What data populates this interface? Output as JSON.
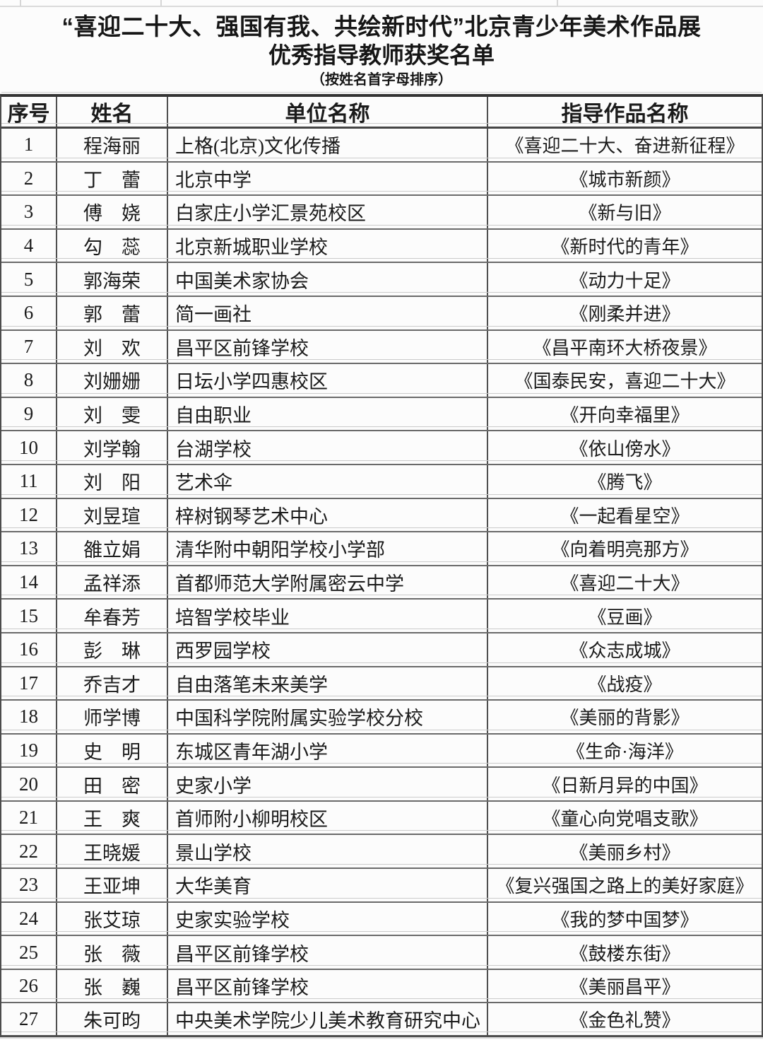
{
  "page": {
    "title_line1": "“喜迎二十大、强国有我、共绘新时代”北京青少年美术作品展",
    "title_line2": "优秀指导教师获奖名单",
    "title_line3": "（按姓名首字母排序）"
  },
  "table": {
    "headers": [
      "序号",
      "姓名",
      "单位名称",
      "指导作品名称"
    ],
    "rows": [
      {
        "no": "1",
        "name": "程海丽",
        "unit": "上格(北京)文化传播",
        "work": "《喜迎二十大、奋进新征程》"
      },
      {
        "no": "2",
        "name": "丁　蕾",
        "unit": "北京中学",
        "work": "《城市新颜》"
      },
      {
        "no": "3",
        "name": "傅　娆",
        "unit": "白家庄小学汇景苑校区",
        "work": "《新与旧》"
      },
      {
        "no": "4",
        "name": "勾　蕊",
        "unit": "北京新城职业学校",
        "work": "《新时代的青年》"
      },
      {
        "no": "5",
        "name": "郭海荣",
        "unit": "中国美术家协会",
        "work": "《动力十足》"
      },
      {
        "no": "6",
        "name": "郭　蕾",
        "unit": "简一画社",
        "work": "《刚柔并进》"
      },
      {
        "no": "7",
        "name": "刘　欢",
        "unit": "昌平区前锋学校",
        "work": "《昌平南环大桥夜景》"
      },
      {
        "no": "8",
        "name": "刘姗姗",
        "unit": "日坛小学四惠校区",
        "work": "《国泰民安，喜迎二十大》"
      },
      {
        "no": "9",
        "name": "刘　雯",
        "unit": "自由职业",
        "work": "《开向幸福里》"
      },
      {
        "no": "10",
        "name": "刘学翰",
        "unit": "台湖学校",
        "work": "《依山傍水》"
      },
      {
        "no": "11",
        "name": "刘　阳",
        "unit": "艺术伞",
        "work": "《腾飞》"
      },
      {
        "no": "12",
        "name": "刘昱瑄",
        "unit": "梓树钢琴艺术中心",
        "work": "《一起看星空》"
      },
      {
        "no": "13",
        "name": "雒立娟",
        "unit": "清华附中朝阳学校小学部",
        "work": "《向着明亮那方》"
      },
      {
        "no": "14",
        "name": "孟祥添",
        "unit": "首都师范大学附属密云中学",
        "work": "《喜迎二十大》"
      },
      {
        "no": "15",
        "name": "牟春芳",
        "unit": "培智学校毕业",
        "work": "《豆画》"
      },
      {
        "no": "16",
        "name": "彭　琳",
        "unit": "西罗园学校",
        "work": "《众志成城》"
      },
      {
        "no": "17",
        "name": "乔吉才",
        "unit": "自由落笔未来美学",
        "work": "《战疫》"
      },
      {
        "no": "18",
        "name": "师学博",
        "unit": "中国科学院附属实验学校分校",
        "work": "《美丽的背影》"
      },
      {
        "no": "19",
        "name": "史　明",
        "unit": "东城区青年湖小学",
        "work": "《生命·海洋》"
      },
      {
        "no": "20",
        "name": "田　密",
        "unit": "史家小学",
        "work": "《日新月异的中国》"
      },
      {
        "no": "21",
        "name": "王　爽",
        "unit": "首师附小柳明校区",
        "work": "《童心向党唱支歌》"
      },
      {
        "no": "22",
        "name": "王晓媛",
        "unit": "景山学校",
        "work": "《美丽乡村》"
      },
      {
        "no": "23",
        "name": "王亚坤",
        "unit": "大华美育",
        "work": "《复兴强国之路上的美好家庭》"
      },
      {
        "no": "24",
        "name": "张艾琼",
        "unit": "史家实验学校",
        "work": "《我的梦中国梦》"
      },
      {
        "no": "25",
        "name": "张　薇",
        "unit": "昌平区前锋学校",
        "work": "《鼓楼东街》"
      },
      {
        "no": "26",
        "name": "张　巍",
        "unit": "昌平区前锋学校",
        "work": "《美丽昌平》"
      },
      {
        "no": "27",
        "name": "朱可昀",
        "unit": "中央美术学院少儿美术教育研究中心",
        "work": "《金色礼赞》"
      }
    ]
  }
}
